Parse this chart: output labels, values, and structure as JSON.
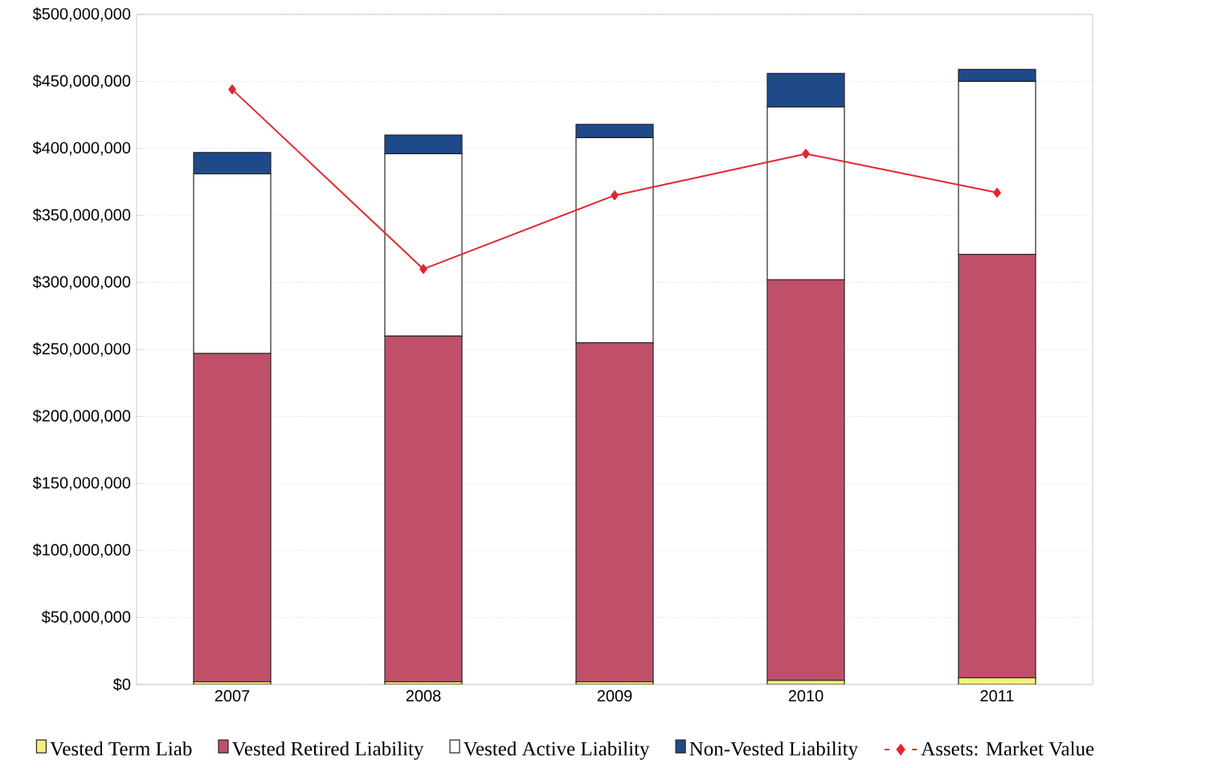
{
  "chart_data": {
    "type": "bar",
    "stacked": true,
    "legend": "bottom",
    "grid": "y",
    "categories": [
      "2007",
      "2008",
      "2009",
      "2010",
      "2011"
    ],
    "ylim": [
      0,
      500000000
    ],
    "yticks": [
      {
        "value": 0,
        "label": "$0"
      },
      {
        "value": 50000000,
        "label": "$50,000,000"
      },
      {
        "value": 100000000,
        "label": "$100,000,000"
      },
      {
        "value": 150000000,
        "label": "$150,000,000"
      },
      {
        "value": 200000000,
        "label": "$200,000,000"
      },
      {
        "value": 250000000,
        "label": "$250,000,000"
      },
      {
        "value": 300000000,
        "label": "$300,000,000"
      },
      {
        "value": 350000000,
        "label": "$350,000,000"
      },
      {
        "value": 400000000,
        "label": "$400,000,000"
      },
      {
        "value": 450000000,
        "label": "$450,000,000"
      },
      {
        "value": 500000000,
        "label": "$500,000,000"
      }
    ],
    "series": [
      {
        "name": "Vested Term Liab",
        "color": "#f5f07a",
        "values": [
          2000000,
          2000000,
          2000000,
          3000000,
          5000000
        ]
      },
      {
        "name": "Vested Retired Liability",
        "color": "#c0506a",
        "values": [
          245000000,
          258000000,
          253000000,
          299000000,
          316000000
        ]
      },
      {
        "name": "Vested Active Liability",
        "color": "#ffffff",
        "values": [
          134000000,
          136000000,
          153000000,
          129000000,
          129000000
        ]
      },
      {
        "name": "Non-Vested Liability",
        "color": "#1f4a8a",
        "values": [
          16000000,
          14000000,
          10000000,
          25000000,
          9000000
        ]
      },
      {
        "name": "Assets: Market Value",
        "type": "line",
        "color": "#e3262e",
        "marker": "diamond",
        "values": [
          444000000,
          310000000,
          365000000,
          396000000,
          367000000
        ]
      }
    ]
  }
}
